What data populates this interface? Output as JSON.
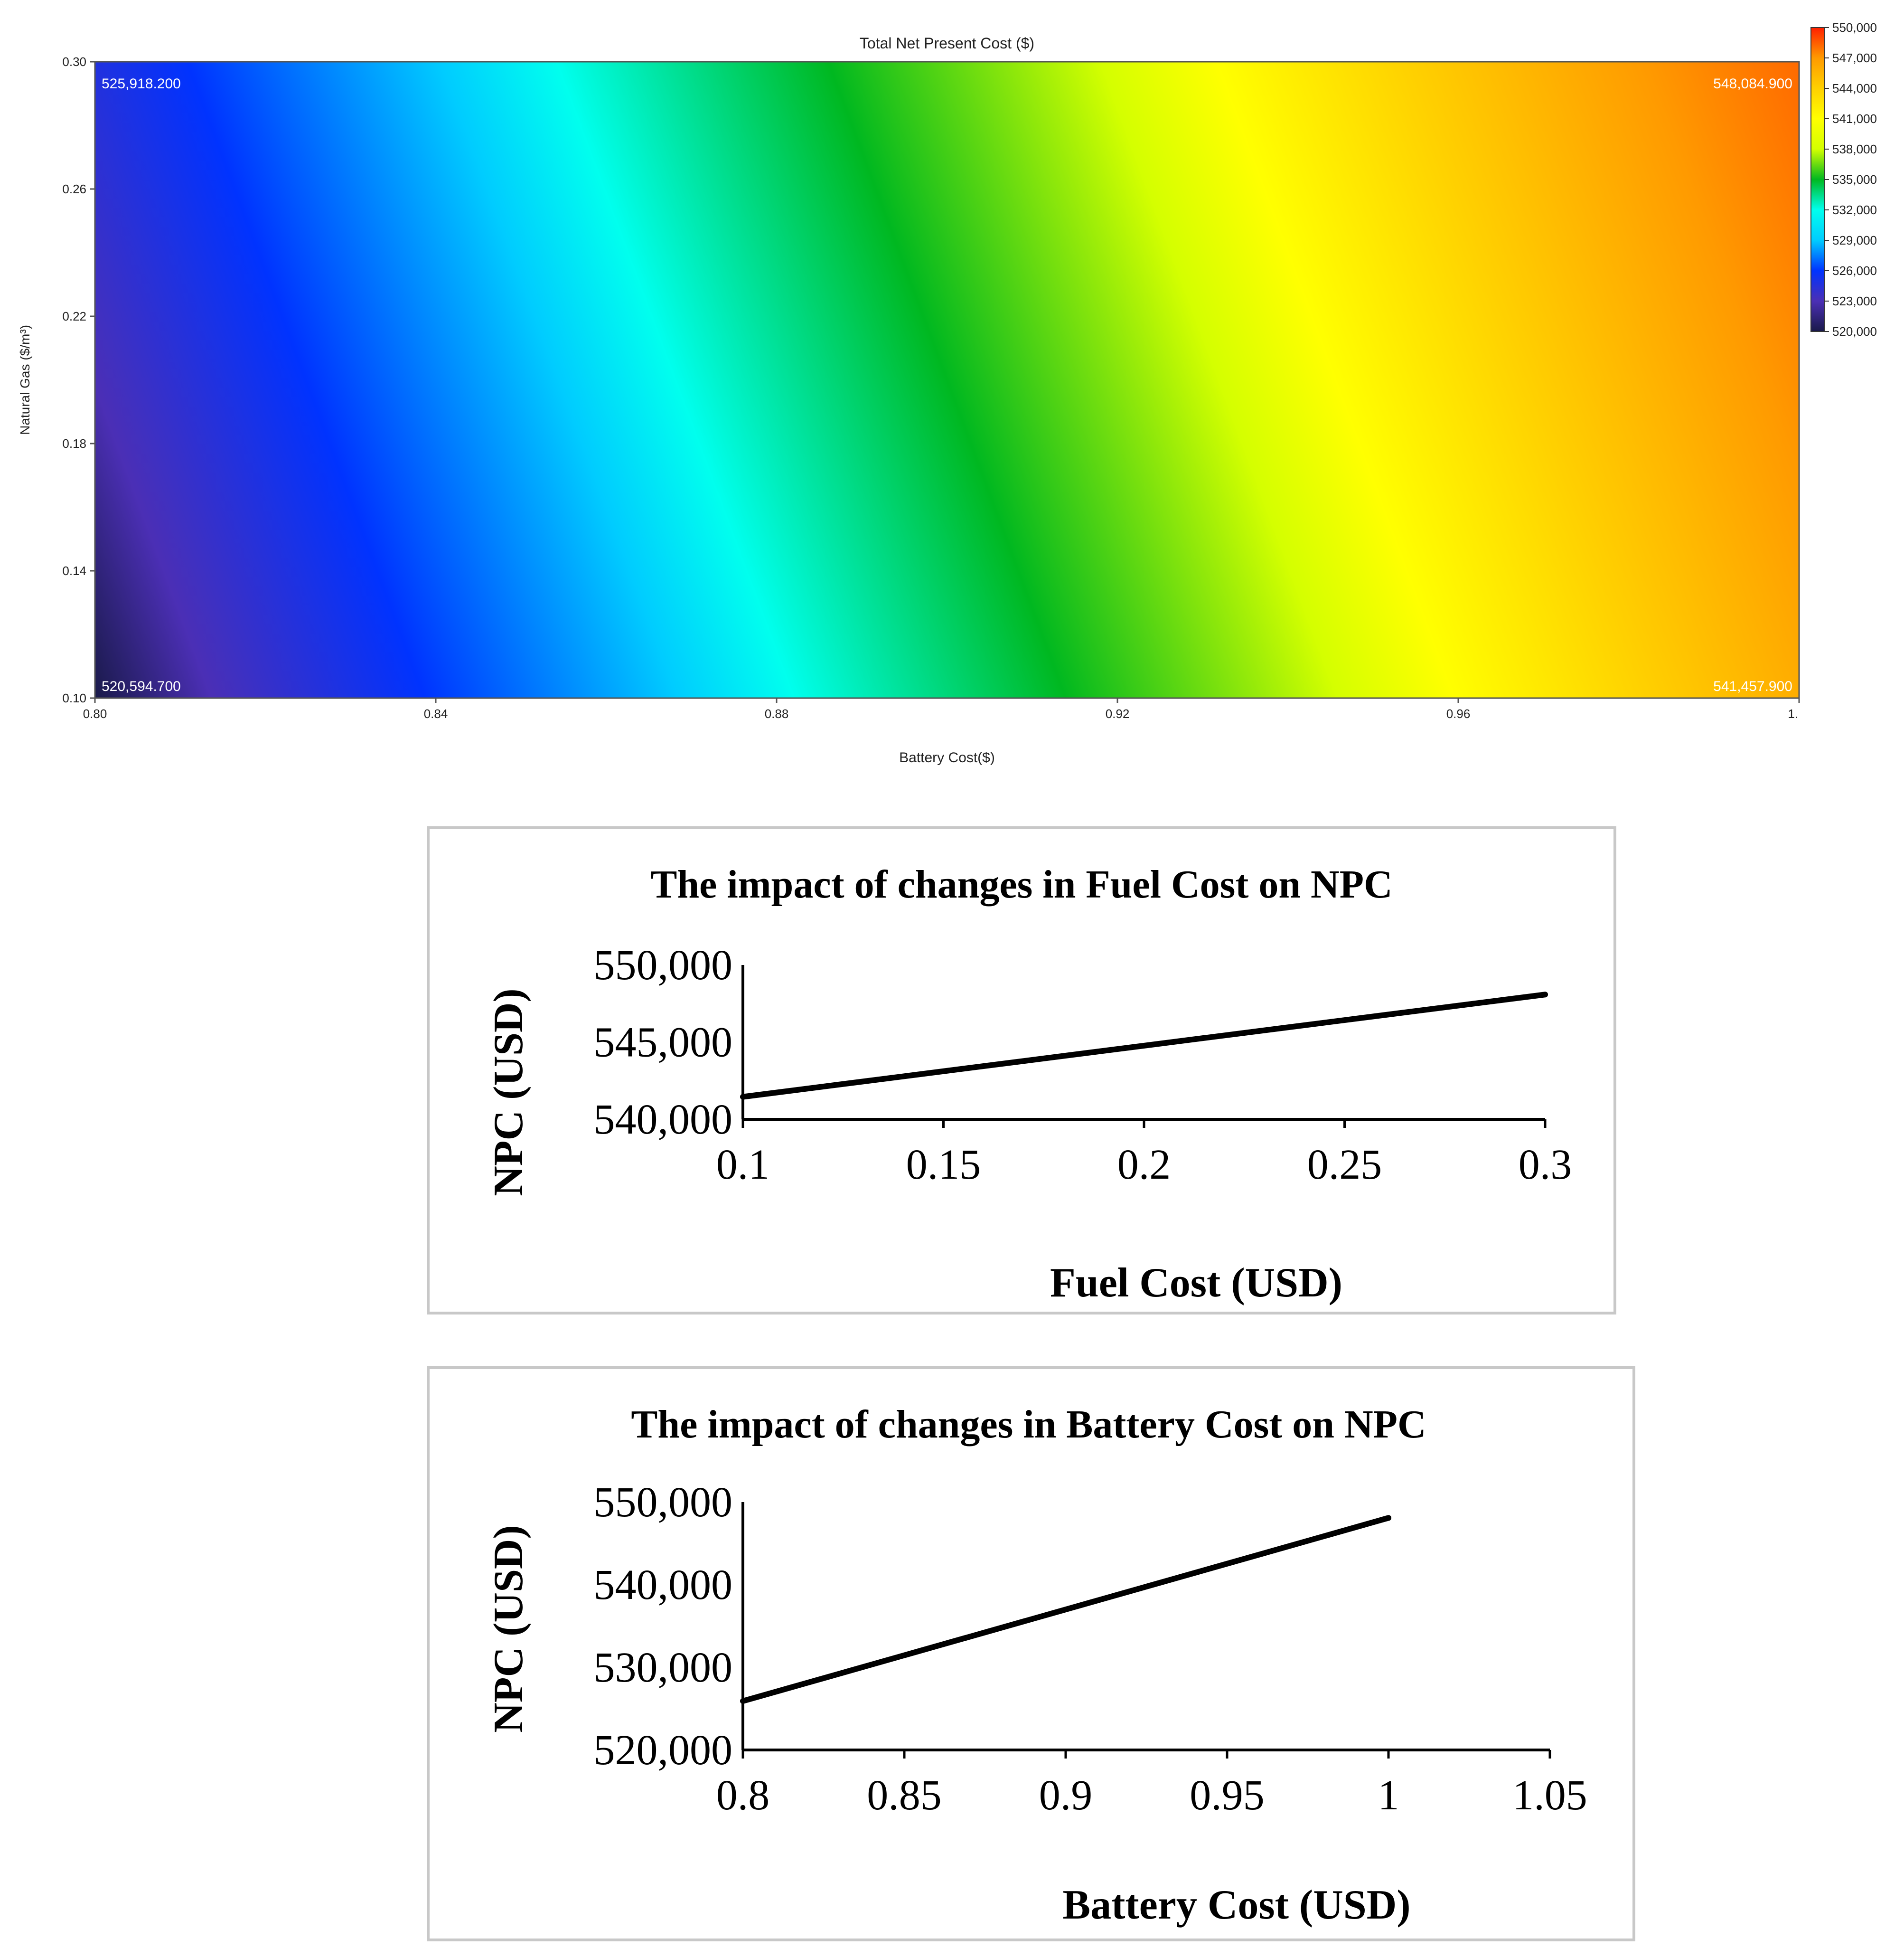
{
  "chart_data": [
    {
      "type": "heatmap",
      "title": "Total Net Present Cost ($)",
      "xlabel": "Battery Cost($)",
      "ylabel": "Natural Gas ($/m³)",
      "xlim": [
        0.8,
        1.0
      ],
      "ylim": [
        0.1,
        0.3
      ],
      "x_ticks": [
        "0.80",
        "0.84",
        "0.88",
        "0.92",
        "0.96",
        "1."
      ],
      "y_ticks": [
        "0.30",
        "0.26",
        "0.22",
        "0.18",
        "0.14",
        "0.10"
      ],
      "corner_values": {
        "top_left": "525,918.200",
        "top_right": "548,084.900",
        "bottom_left": "520,594.700",
        "bottom_right": "541,457.900"
      },
      "colorbar": {
        "min": 520000,
        "max": 550000,
        "ticks": [
          "550,000",
          "547,000",
          "544,000",
          "541,000",
          "538,000",
          "535,000",
          "532,000",
          "529,000",
          "526,000",
          "523,000",
          "520,000"
        ],
        "colors": [
          "#1a1a4a",
          "#4b2fb5",
          "#0033ff",
          "#00ccff",
          "#00ffee",
          "#00b820",
          "#d4ff00",
          "#ffff00",
          "#ffd000",
          "#ff9a00",
          "#ff2000"
        ]
      }
    },
    {
      "type": "line",
      "title": "The impact of changes in Fuel Cost on NPC",
      "xlabel": "Fuel Cost (USD)",
      "ylabel": "NPC (USD)",
      "x": [
        0.1,
        0.3
      ],
      "y": [
        541457.9,
        548084.9
      ],
      "xlim": [
        0.1,
        0.3
      ],
      "ylim": [
        540000,
        550000
      ],
      "x_ticks": [
        "0.1",
        "0.15",
        "0.2",
        "0.25",
        "0.3"
      ],
      "y_ticks": [
        "550,000",
        "545,000",
        "540,000"
      ],
      "grid": false
    },
    {
      "type": "line",
      "title": "The impact of changes in Battery Cost on NPC",
      "xlabel": "Battery Cost (USD)",
      "ylabel": "NPC (USD)",
      "x": [
        0.8,
        1.0
      ],
      "y": [
        525918.2,
        548084.9
      ],
      "xlim": [
        0.8,
        1.05
      ],
      "ylim": [
        520000,
        550000
      ],
      "x_ticks": [
        "0.8",
        "0.85",
        "0.9",
        "0.95",
        "1",
        "1.05"
      ],
      "y_ticks": [
        "550,000",
        "540,000",
        "530,000",
        "520,000"
      ],
      "grid": false
    }
  ]
}
